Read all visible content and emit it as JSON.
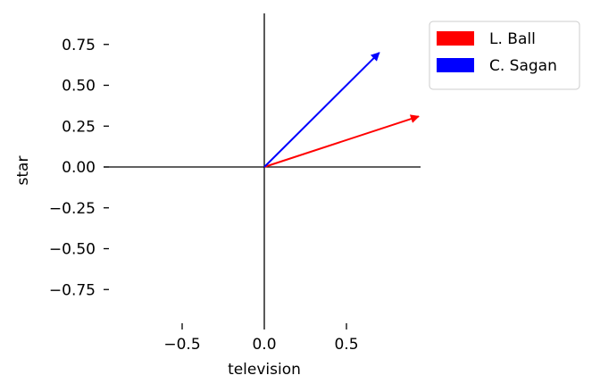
{
  "chart_data": {
    "type": "quiver",
    "title": "",
    "xlabel": "television",
    "ylabel": "star",
    "xlim": [
      -0.95,
      0.95
    ],
    "ylim": [
      -0.95,
      0.95
    ],
    "xticks": [
      -0.5,
      0.0,
      0.5
    ],
    "xtick_labels": [
      "−0.5",
      "0.0",
      "0.5"
    ],
    "yticks": [
      0.75,
      0.5,
      0.25,
      0.0,
      -0.25,
      -0.5,
      -0.75
    ],
    "ytick_labels": [
      "0.75",
      "0.50",
      "0.25",
      "0.00",
      "−0.25",
      "−0.50",
      "−0.75"
    ],
    "grid": false,
    "legend_position": "top-right, outside plot",
    "series": [
      {
        "name": "L. Ball",
        "color": "#ff0000",
        "origin": [
          0,
          0
        ],
        "vector": [
          0.94,
          0.31
        ]
      },
      {
        "name": "C. Sagan",
        "color": "#0000ff",
        "origin": [
          0,
          0
        ],
        "vector": [
          0.7,
          0.7
        ]
      }
    ]
  }
}
